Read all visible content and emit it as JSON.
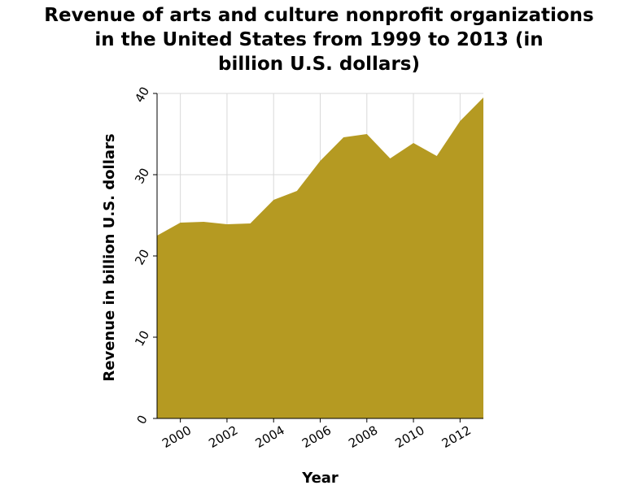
{
  "chart_data": {
    "type": "area",
    "title_lines": [
      "Revenue of arts and culture nonprofit organizations",
      "in the United States from 1999 to 2013 (in",
      "billion U.S. dollars)"
    ],
    "xlabel": "Year",
    "ylabel": "Revenue in billion U.S. dollars",
    "x": [
      1999,
      2000,
      2001,
      2002,
      2003,
      2004,
      2005,
      2006,
      2007,
      2008,
      2009,
      2010,
      2011,
      2012,
      2013
    ],
    "values": [
      22.5,
      24.1,
      24.2,
      23.9,
      24.0,
      26.9,
      28.0,
      31.7,
      34.6,
      35.0,
      32.0,
      33.9,
      32.3,
      36.6,
      39.5
    ],
    "xlim": [
      1999,
      2013
    ],
    "ylim": [
      0,
      40
    ],
    "x_ticks": [
      "2000",
      "2002",
      "2004",
      "2006",
      "2008",
      "2010",
      "2012"
    ],
    "y_ticks": [
      "0",
      "10",
      "20",
      "30",
      "40"
    ],
    "fill_color": "#b59a22",
    "grid": true,
    "legend": "none"
  }
}
